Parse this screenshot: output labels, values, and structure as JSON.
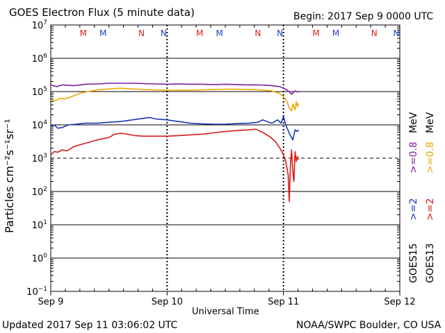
{
  "header": {
    "title": "GOES Electron Flux (5 minute data)",
    "begin": "Begin: 2017 Sep 9 0000 UTC"
  },
  "footer": {
    "updated": "Updated 2017 Sep 11 03:06:02 UTC",
    "credit": "NOAA/SWPC Boulder, CO USA"
  },
  "chart_data": {
    "type": "line",
    "title": "GOES Electron Flux (5 minute data)",
    "xlabel": "Universal Time",
    "ylabel": "Particles cm⁻²s⁻¹sr⁻¹",
    "x_unit": "days since 2017 Sep 9 0000 UTC",
    "xlim": [
      0,
      3
    ],
    "ylim_log10": [
      -1,
      7
    ],
    "y_scale": "log",
    "y_ticks": [
      {
        "exp": 7,
        "base": "10",
        "sup": "7"
      },
      {
        "exp": 6,
        "base": "10",
        "sup": "6"
      },
      {
        "exp": 5,
        "base": "10",
        "sup": "5"
      },
      {
        "exp": 4,
        "base": "10",
        "sup": "4"
      },
      {
        "exp": 3,
        "base": "10",
        "sup": "3"
      },
      {
        "exp": 2,
        "base": "10",
        "sup": "2"
      },
      {
        "exp": 1,
        "base": "10",
        "sup": "1"
      },
      {
        "exp": 0,
        "base": "10",
        "sup": "0"
      },
      {
        "exp": -1,
        "base": "10",
        "sup": "−1"
      }
    ],
    "x_ticks": [
      {
        "x": 0,
        "label": "Sep 9"
      },
      {
        "x": 1,
        "label": "Sep 10"
      },
      {
        "x": 2,
        "label": "Sep 11"
      },
      {
        "x": 3,
        "label": "Sep 12"
      }
    ],
    "threshold_log10": 3,
    "markers": [
      {
        "x": 0.28,
        "label": "M",
        "color": "#d42020"
      },
      {
        "x": 0.45,
        "label": "M",
        "color": "#2040c0"
      },
      {
        "x": 0.78,
        "label": "N",
        "color": "#d42020"
      },
      {
        "x": 0.97,
        "label": "N",
        "color": "#2040c0"
      },
      {
        "x": 1.28,
        "label": "M",
        "color": "#d42020"
      },
      {
        "x": 1.45,
        "label": "M",
        "color": "#2040c0"
      },
      {
        "x": 1.78,
        "label": "N",
        "color": "#d42020"
      },
      {
        "x": 1.97,
        "label": "N",
        "color": "#2040c0"
      },
      {
        "x": 2.28,
        "label": "M",
        "color": "#d42020"
      },
      {
        "x": 2.45,
        "label": "M",
        "color": "#2040c0"
      },
      {
        "x": 2.78,
        "label": "N",
        "color": "#d42020"
      },
      {
        "x": 2.97,
        "label": "N",
        "color": "#2040c0"
      }
    ],
    "series": [
      {
        "name": "GOES15 >=0.8 MeV",
        "color": "#7a1fa0",
        "points": [
          [
            0.0,
            5.2
          ],
          [
            0.05,
            5.15
          ],
          [
            0.1,
            5.2
          ],
          [
            0.2,
            5.18
          ],
          [
            0.3,
            5.22
          ],
          [
            0.4,
            5.23
          ],
          [
            0.5,
            5.25
          ],
          [
            0.6,
            5.25
          ],
          [
            0.7,
            5.25
          ],
          [
            0.8,
            5.24
          ],
          [
            0.9,
            5.23
          ],
          [
            1.0,
            5.22
          ],
          [
            1.1,
            5.23
          ],
          [
            1.2,
            5.22
          ],
          [
            1.3,
            5.22
          ],
          [
            1.4,
            5.21
          ],
          [
            1.5,
            5.22
          ],
          [
            1.6,
            5.21
          ],
          [
            1.7,
            5.2
          ],
          [
            1.8,
            5.2
          ],
          [
            1.9,
            5.18
          ],
          [
            1.97,
            5.15
          ],
          [
            2.03,
            5.05
          ],
          [
            2.07,
            4.92
          ],
          [
            2.1,
            5.02
          ],
          [
            2.13,
            4.98
          ]
        ]
      },
      {
        "name": "GOES13 >=0.8 MeV",
        "color": "#f0a800",
        "points": [
          [
            0.0,
            4.75
          ],
          [
            0.04,
            4.72
          ],
          [
            0.08,
            4.8
          ],
          [
            0.12,
            4.78
          ],
          [
            0.18,
            4.85
          ],
          [
            0.25,
            4.95
          ],
          [
            0.32,
            5.0
          ],
          [
            0.4,
            5.05
          ],
          [
            0.5,
            5.08
          ],
          [
            0.6,
            5.1
          ],
          [
            0.7,
            5.08
          ],
          [
            0.8,
            5.06
          ],
          [
            0.9,
            5.05
          ],
          [
            1.0,
            5.04
          ],
          [
            1.1,
            5.04
          ],
          [
            1.2,
            5.04
          ],
          [
            1.3,
            5.05
          ],
          [
            1.4,
            5.06
          ],
          [
            1.5,
            5.07
          ],
          [
            1.6,
            5.07
          ],
          [
            1.7,
            5.06
          ],
          [
            1.8,
            5.05
          ],
          [
            1.9,
            5.02
          ],
          [
            1.96,
            4.95
          ],
          [
            2.0,
            4.85
          ],
          [
            2.03,
            4.7
          ],
          [
            2.05,
            4.5
          ],
          [
            2.07,
            4.42
          ],
          [
            2.08,
            4.62
          ],
          [
            2.1,
            4.45
          ],
          [
            2.11,
            4.7
          ],
          [
            2.12,
            4.55
          ],
          [
            2.13,
            4.65
          ]
        ]
      },
      {
        "name": "GOES15 >=2 MeV",
        "color": "#1838b0",
        "points": [
          [
            0.0,
            3.95
          ],
          [
            0.03,
            4.0
          ],
          [
            0.06,
            3.9
          ],
          [
            0.1,
            3.92
          ],
          [
            0.15,
            4.0
          ],
          [
            0.22,
            4.02
          ],
          [
            0.3,
            4.05
          ],
          [
            0.4,
            4.05
          ],
          [
            0.5,
            4.08
          ],
          [
            0.6,
            4.1
          ],
          [
            0.7,
            4.15
          ],
          [
            0.8,
            4.2
          ],
          [
            0.85,
            4.22
          ],
          [
            0.9,
            4.18
          ],
          [
            1.0,
            4.15
          ],
          [
            1.1,
            4.1
          ],
          [
            1.2,
            4.05
          ],
          [
            1.3,
            4.03
          ],
          [
            1.4,
            4.02
          ],
          [
            1.5,
            4.02
          ],
          [
            1.6,
            4.04
          ],
          [
            1.7,
            4.05
          ],
          [
            1.78,
            4.08
          ],
          [
            1.82,
            4.15
          ],
          [
            1.86,
            4.1
          ],
          [
            1.9,
            4.05
          ],
          [
            1.95,
            4.15
          ],
          [
            1.98,
            4.05
          ],
          [
            2.0,
            4.25
          ],
          [
            2.02,
            4.0
          ],
          [
            2.05,
            3.75
          ],
          [
            2.08,
            3.55
          ],
          [
            2.1,
            3.85
          ],
          [
            2.12,
            3.8
          ],
          [
            2.13,
            3.85
          ]
        ]
      },
      {
        "name": "GOES13 >=2 MeV",
        "color": "#d81818",
        "points": [
          [
            0.0,
            3.1
          ],
          [
            0.03,
            3.2
          ],
          [
            0.06,
            3.18
          ],
          [
            0.1,
            3.25
          ],
          [
            0.14,
            3.22
          ],
          [
            0.2,
            3.35
          ],
          [
            0.3,
            3.45
          ],
          [
            0.4,
            3.55
          ],
          [
            0.5,
            3.62
          ],
          [
            0.55,
            3.72
          ],
          [
            0.6,
            3.75
          ],
          [
            0.66,
            3.72
          ],
          [
            0.72,
            3.68
          ],
          [
            0.8,
            3.66
          ],
          [
            0.9,
            3.66
          ],
          [
            1.0,
            3.66
          ],
          [
            1.1,
            3.68
          ],
          [
            1.2,
            3.7
          ],
          [
            1.3,
            3.72
          ],
          [
            1.4,
            3.76
          ],
          [
            1.5,
            3.8
          ],
          [
            1.6,
            3.83
          ],
          [
            1.7,
            3.85
          ],
          [
            1.76,
            3.87
          ],
          [
            1.82,
            3.78
          ],
          [
            1.88,
            3.65
          ],
          [
            1.93,
            3.5
          ],
          [
            1.97,
            3.3
          ],
          [
            2.0,
            3.1
          ],
          [
            2.02,
            2.9
          ],
          [
            2.04,
            2.5
          ],
          [
            2.05,
            1.7
          ],
          [
            2.06,
            2.8
          ],
          [
            2.07,
            3.25
          ],
          [
            2.08,
            2.6
          ],
          [
            2.09,
            2.3
          ],
          [
            2.1,
            3.2
          ],
          [
            2.11,
            2.9
          ],
          [
            2.12,
            3.05
          ],
          [
            2.13,
            2.95
          ]
        ]
      }
    ],
    "legend": [
      {
        "text": "GOES15",
        "color": "#000000"
      },
      {
        "text": ">=2",
        "color": "#1838b0"
      },
      {
        "text": ">=0.8",
        "color": "#7a1fa0"
      },
      {
        "text": "MeV",
        "color": "#000000"
      },
      {
        "text": "GOES13",
        "color": "#000000"
      },
      {
        "text": ">=2",
        "color": "#d81818"
      },
      {
        "text": ">=0.8",
        "color": "#f0a800"
      },
      {
        "text": "MeV",
        "color": "#000000"
      }
    ]
  }
}
